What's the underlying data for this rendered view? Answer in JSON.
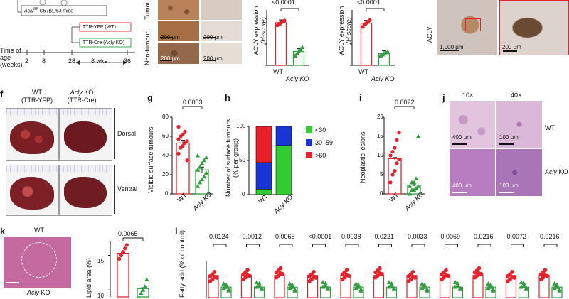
{
  "panel_a": {
    "time_label": "Time of age (weeks)",
    "ticks": [
      "2",
      "8",
      "28",
      "36"
    ],
    "mouse_strain": "Acly",
    "mouse_strain_sup": "fl/fl",
    "mouse_strain_rest": " C57BL/6J mice",
    "arm_wt": "TTR-YFP (WT)",
    "arm_ko": "TTR-Cre (Acly KO)",
    "duration": "8 wks",
    "row_tumour": "Tumour",
    "row_nontumour": "Non-tumour",
    "scalebar_200": "200 μm",
    "colors": {
      "wt": "#e8202a",
      "ko": "#2e9e3c"
    }
  },
  "panel_a_chart1": {
    "p_value": "<0.0001",
    "ylabel": "ACLY expression",
    "ylabel_sub": "(H-score)",
    "categories": [
      "WT",
      "Acly KO"
    ]
  },
  "panel_a_chart2": {
    "p_value": "<0.0001",
    "ylabel": "ACLY expression",
    "ylabel_sub": "(H-score)",
    "categories": [
      "WT",
      "Acly KO"
    ]
  },
  "panel_a_right": {
    "label": "ACLY",
    "scalebar_1000": "1,000 μm",
    "scalebar_200": "200 μm"
  },
  "panel_f": {
    "label": "f",
    "wt_title": "WT",
    "wt_sub": "(TTR-YFP)",
    "ko_title_italic": "Acly",
    "ko_title_rest": " KO",
    "ko_sub": "(TTR-Cre)",
    "dorsal": "Dorsal",
    "ventral": "Ventral"
  },
  "panel_g": {
    "label": "g",
    "p_value": "0.0003",
    "ylabel": "Visible surface tumours",
    "categories": [
      "WT",
      "Acly KO"
    ],
    "yticks": [
      "0",
      "20",
      "40",
      "60",
      "80"
    ]
  },
  "panel_h": {
    "label": "h",
    "ylabel": "Number of surface tumours",
    "ylabel_sub": "(% per group)",
    "categories": [
      "WT",
      "Acly KO"
    ],
    "yticks": [
      "0",
      "50",
      "100"
    ],
    "legend": [
      "<30",
      "30–59",
      ">60"
    ]
  },
  "panel_i": {
    "label": "i",
    "p_value": "0.0022",
    "ylabel": "Neoplastic lesions",
    "categories": [
      "WT",
      "Acly KO"
    ],
    "yticks": [
      "0",
      "5",
      "10",
      "15",
      "20"
    ]
  },
  "panel_j": {
    "label": "j",
    "col1": "10×",
    "col2": "40×",
    "row_wt": "WT",
    "row_ko_italic": "Acly",
    "row_ko_rest": " KO",
    "scalebar_400": "400 μm",
    "scalebar_100": "100 μm"
  },
  "panel_k": {
    "label": "k",
    "wt_label": "WT",
    "ko_label_italic": "Acly",
    "ko_label_rest": " KO",
    "p_value": "0.0065",
    "ylabel": "Lipid area (%)",
    "yticks": [
      "10",
      "15"
    ]
  },
  "panel_l": {
    "label": "l",
    "ylabel": "Fatty acid (% of control)",
    "p_values": [
      "0.0124",
      "0.0012",
      "0.0065",
      "<0.0001",
      "0.0038",
      "0.0221",
      "0.0033",
      "0.0069",
      "0.0216",
      "0.0072",
      "0.0216"
    ]
  },
  "chart_data": [
    {
      "type": "bar",
      "panel": "a-left",
      "categories": [
        "WT",
        "Acly KO"
      ],
      "values": [
        200,
        65
      ],
      "points": [
        [
          188,
          195,
          200,
          205,
          210
        ],
        [
          45,
          55,
          65,
          75,
          85
        ]
      ],
      "ylim": [
        0,
        260
      ],
      "title": "",
      "xlabel": "",
      "ylabel": "ACLY expression (H-score)"
    },
    {
      "type": "bar",
      "panel": "a-right",
      "categories": [
        "WT",
        "Acly KO"
      ],
      "values": [
        198,
        55
      ],
      "points": [
        [
          180,
          192,
          198,
          205,
          212
        ],
        [
          45,
          50,
          55,
          60,
          65
        ]
      ],
      "ylim": [
        0,
        260
      ],
      "title": "",
      "xlabel": "",
      "ylabel": "ACLY expression (H-score)"
    },
    {
      "type": "bar",
      "panel": "g",
      "categories": [
        "WT",
        "Acly KO"
      ],
      "values": [
        53,
        25
      ],
      "points": [
        [
          42,
          48,
          50,
          53,
          55,
          57,
          60,
          62,
          65,
          35,
          70
        ],
        [
          8,
          12,
          15,
          18,
          22,
          25,
          28,
          32,
          35,
          38,
          40
        ]
      ],
      "ylim": [
        0,
        80
      ],
      "title": "",
      "xlabel": "",
      "ylabel": "Visible surface tumours"
    },
    {
      "type": "bar",
      "panel": "h",
      "categories": [
        "WT",
        "Acly KO"
      ],
      "series": [
        {
          "name": "<30",
          "values": [
            8,
            72
          ]
        },
        {
          "name": "30–59",
          "values": [
            39,
            28
          ]
        },
        {
          "name": ">60",
          "values": [
            53,
            0
          ]
        }
      ],
      "ylim": [
        0,
        100
      ],
      "title": "",
      "xlabel": "",
      "ylabel": "Number of surface tumours (% per group)"
    },
    {
      "type": "bar",
      "panel": "i",
      "categories": [
        "WT",
        "Acly KO"
      ],
      "values": [
        9.2,
        2.3
      ],
      "points": [
        [
          3,
          5,
          6,
          8,
          9,
          10,
          11,
          12,
          14,
          16
        ],
        [
          0,
          1,
          1,
          1.5,
          2,
          2,
          3,
          3,
          4,
          15
        ]
      ],
      "ylim": [
        0,
        20
      ],
      "title": "",
      "xlabel": "",
      "ylabel": "Neoplastic lesions"
    },
    {
      "type": "bar",
      "panel": "k",
      "categories": [
        "WT",
        "Acly KO"
      ],
      "values": [
        15.3,
        10.2
      ],
      "points": [
        [
          14.5,
          15,
          15.5,
          16,
          16.5
        ],
        [
          8.8,
          9.5,
          10,
          10.5,
          11.5
        ]
      ],
      "ylim": [
        9,
        17
      ],
      "title": "",
      "xlabel": "",
      "ylabel": "Lipid area (%)"
    }
  ]
}
